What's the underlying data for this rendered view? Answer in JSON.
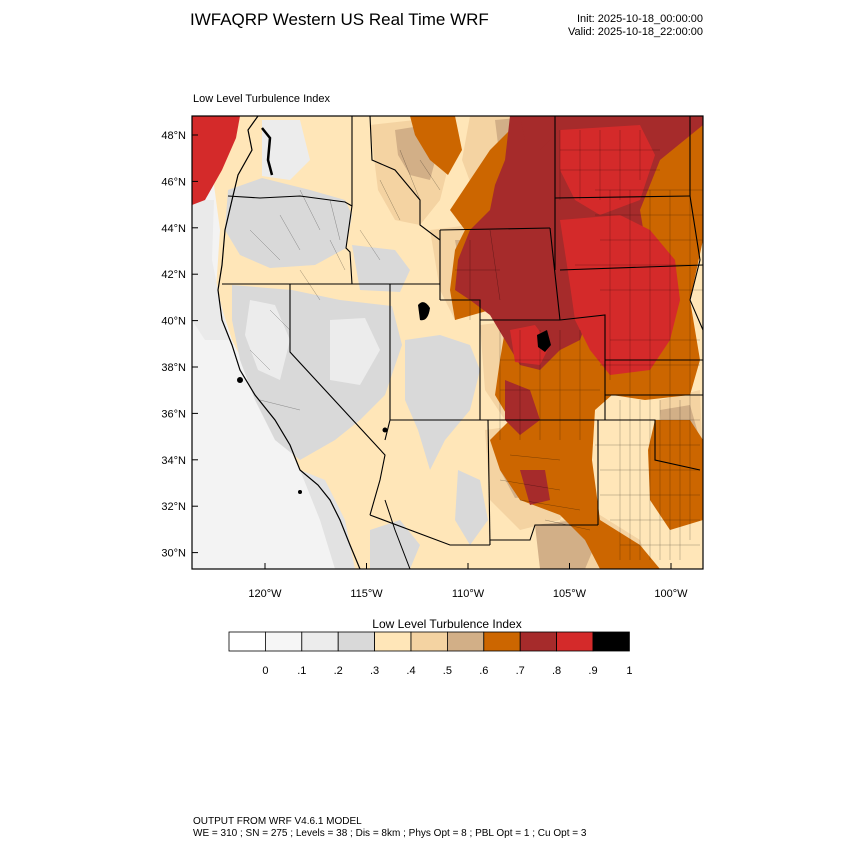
{
  "header": {
    "title": "IWFAQRP Western US Real Time WRF",
    "init": "Init: 2025-10-18_00:00:00",
    "valid": "Valid: 2025-10-18_22:00:00"
  },
  "map": {
    "subtitle": "Low Level Turbulence Index",
    "lat_labels": [
      "48°N",
      "46°N",
      "44°N",
      "42°N",
      "40°N",
      "38°N",
      "36°N",
      "34°N",
      "32°N",
      "30°N"
    ],
    "lat_values": [
      48,
      46,
      44,
      42,
      40,
      38,
      36,
      34,
      32,
      30
    ],
    "lon_labels": [
      "120°W",
      "115°W",
      "110°W",
      "105°W",
      "100°W"
    ],
    "lon_values": [
      -120,
      -115,
      -110,
      -105,
      -100
    ]
  },
  "colorbar": {
    "title": "Low Level Turbulence Index",
    "ticks": [
      "0",
      ".1",
      ".2",
      ".3",
      ".4",
      ".5",
      ".6",
      ".7",
      ".8",
      ".9",
      "1"
    ],
    "colors": [
      "#ffffff",
      "#f6f6f6",
      "#ececec",
      "#d9d9d9",
      "#ffe6b8",
      "#f4d3a2",
      "#d2af87",
      "#cc6600",
      "#a62b2b",
      "#d42a2a",
      "#000000"
    ]
  },
  "footer": {
    "line1": "OUTPUT FROM WRF V4.6.1 MODEL",
    "line2": "WE = 310 ; SN = 275 ; Levels = 38 ; Dis = 8km ; Phys Opt = 8 ; PBL Opt = 1 ; Cu Opt = 3"
  }
}
